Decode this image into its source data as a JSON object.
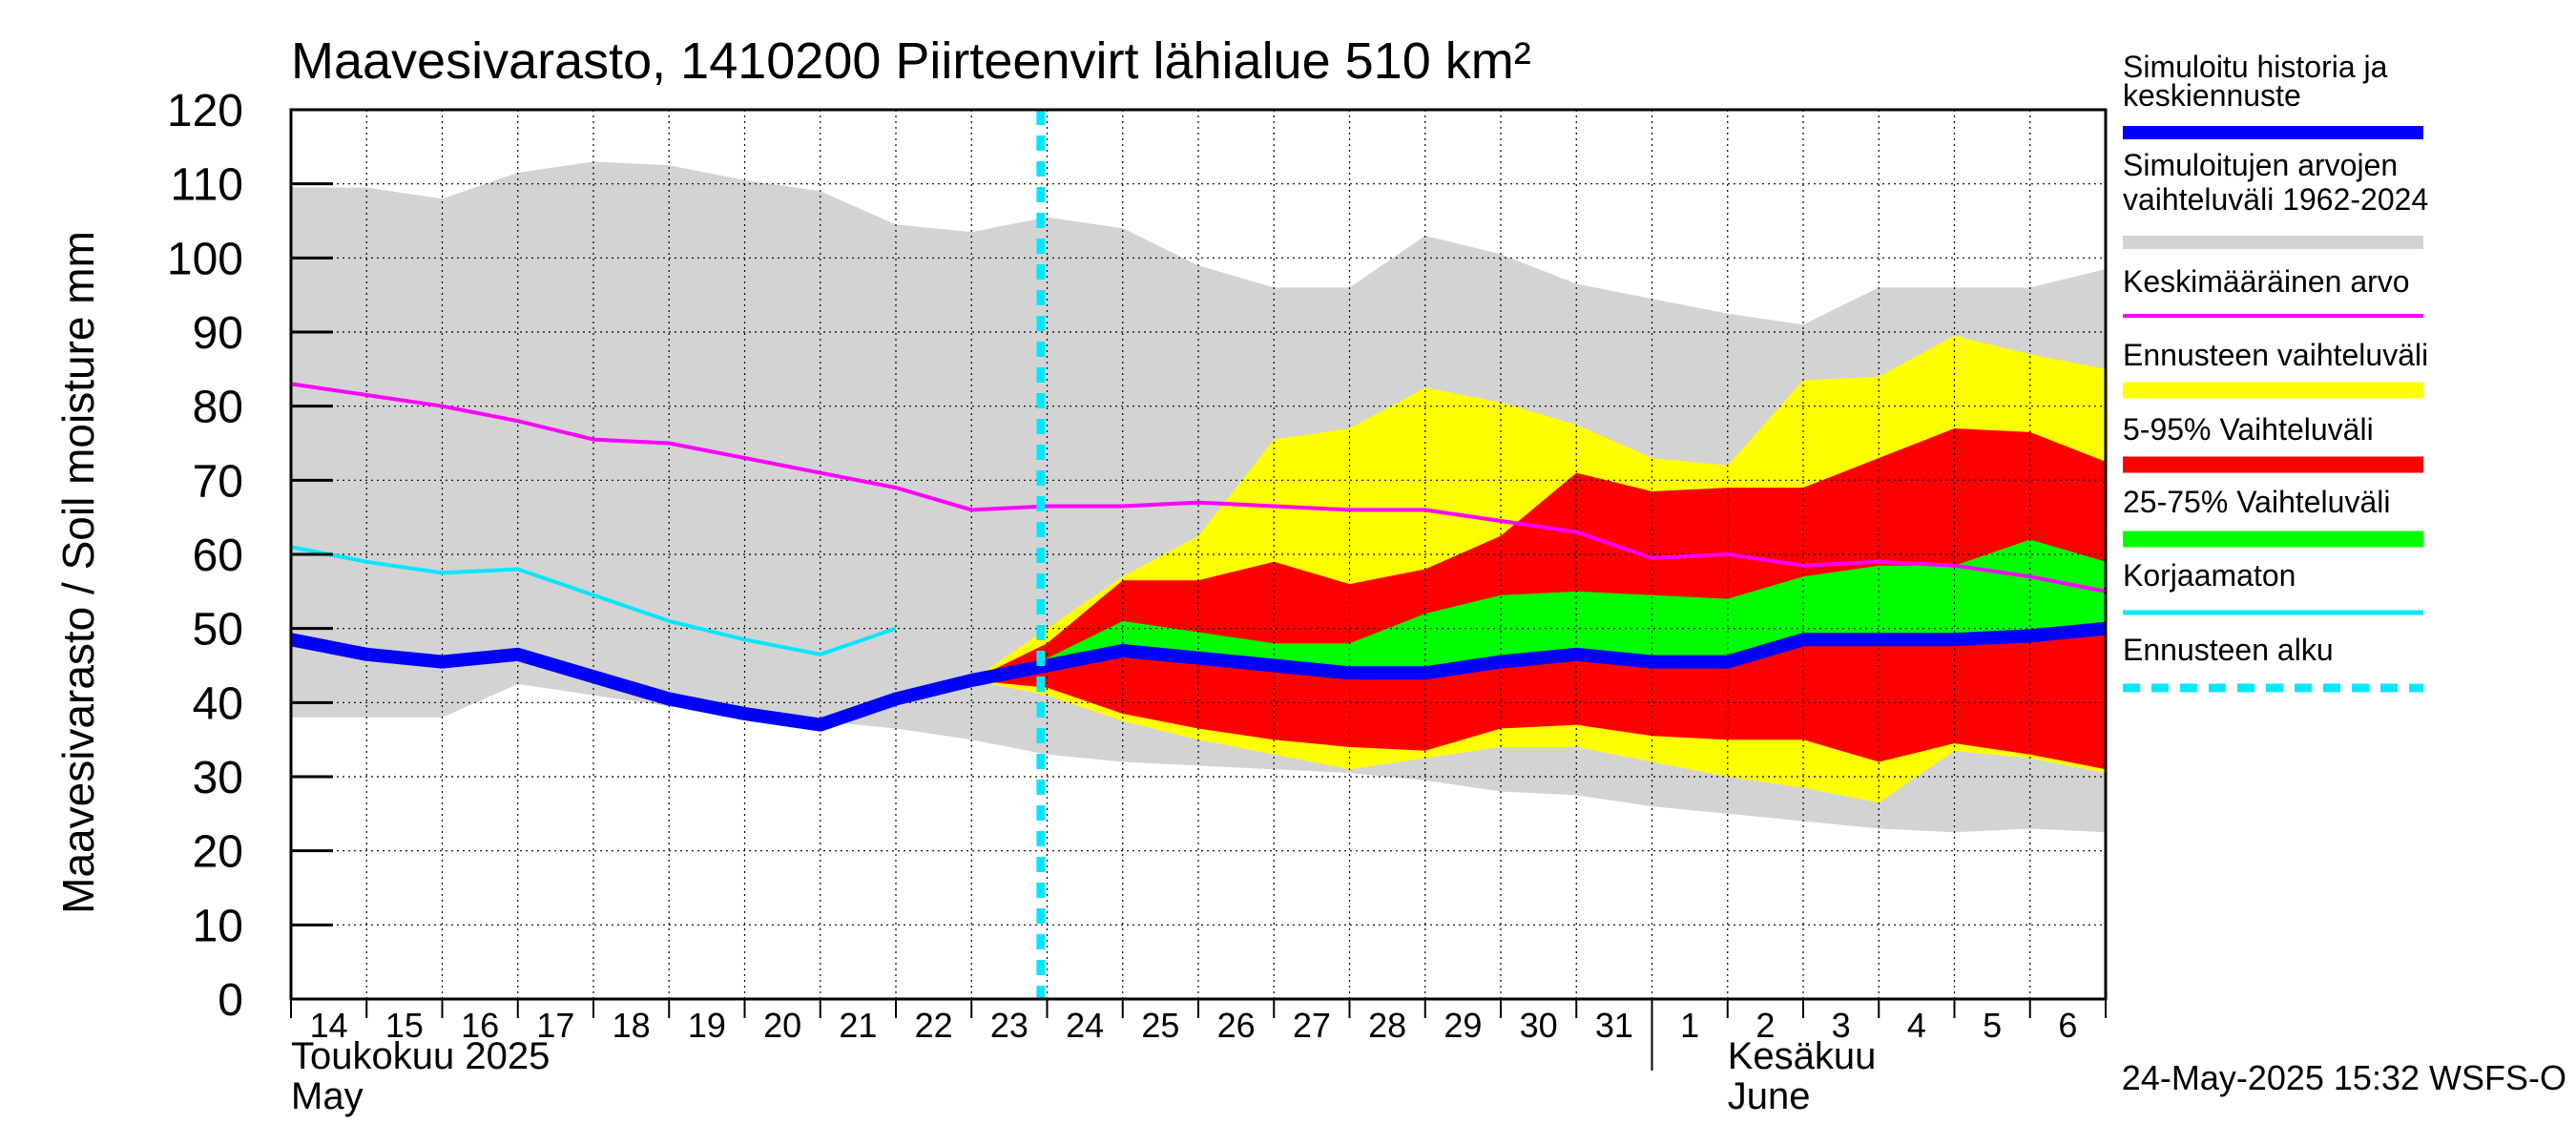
{
  "chart_data": {
    "type": "area",
    "title": "Maavesivarasto, 1410200 Piirteenvirt lähialue 510 km²",
    "ylabel": "Maavesivarasto / Soil moisture   mm",
    "ylim": [
      0,
      120
    ],
    "yticks": [
      0,
      10,
      20,
      30,
      40,
      50,
      60,
      70,
      80,
      90,
      100,
      110,
      120
    ],
    "xlim": [
      "2025-05-14",
      "2025-06-07"
    ],
    "x": [
      "2025-05-14",
      "2025-05-15",
      "2025-05-16",
      "2025-05-17",
      "2025-05-18",
      "2025-05-19",
      "2025-05-20",
      "2025-05-21",
      "2025-05-22",
      "2025-05-23",
      "2025-05-24",
      "2025-05-25",
      "2025-05-26",
      "2025-05-27",
      "2025-05-28",
      "2025-05-29",
      "2025-05-30",
      "2025-05-31",
      "2025-06-01",
      "2025-06-02",
      "2025-06-03",
      "2025-06-04",
      "2025-06-05",
      "2025-06-06",
      "2025-06-07"
    ],
    "day_labels": [
      "14",
      "15",
      "16",
      "17",
      "18",
      "19",
      "20",
      "21",
      "22",
      "23",
      "24",
      "25",
      "26",
      "27",
      "28",
      "29",
      "30",
      "31",
      "1",
      "2",
      "3",
      "4",
      "5",
      "6"
    ],
    "month_labels": [
      {
        "fi": "Toukokuu  2025",
        "en": "May",
        "start": "2025-05-14"
      },
      {
        "fi": "Kesäkuu",
        "en": "June",
        "start": "2025-06-02"
      }
    ],
    "forecast_start": "2025-05-23T22:00",
    "series": [
      {
        "name": "Simuloitujen arvojen vaihteluväli 1962-2024",
        "kind": "band",
        "color": "#d3d3d3",
        "upper": [
          109.5,
          109.5,
          108,
          111.5,
          113,
          112.5,
          110.5,
          109,
          104.5,
          103.5,
          105.5,
          104,
          99,
          96,
          96,
          103,
          100.5,
          96.5,
          94.5,
          92.5,
          91,
          96,
          96,
          96,
          98.5
        ],
        "lower": [
          38,
          38,
          38,
          42.5,
          41,
          39.5,
          38.5,
          37.5,
          36.5,
          35,
          33,
          32,
          31.5,
          31,
          30.5,
          29.5,
          28,
          27.5,
          26,
          25,
          24,
          23,
          22.5,
          23,
          22.5
        ]
      },
      {
        "name": "Ennusteen vaihteluväli",
        "kind": "band",
        "color": "#ffff00",
        "upper": [
          null,
          null,
          null,
          null,
          null,
          null,
          null,
          null,
          null,
          43,
          50,
          57,
          62.5,
          75.5,
          77,
          82.5,
          80.5,
          77.5,
          73,
          72,
          83.5,
          84,
          89.5,
          87,
          85
        ],
        "lower": [
          null,
          null,
          null,
          null,
          null,
          null,
          null,
          null,
          null,
          43,
          41,
          37.5,
          35,
          33,
          31,
          32.5,
          34,
          34,
          32,
          30,
          28.5,
          26.5,
          33.5,
          32.5,
          30.5
        ]
      },
      {
        "name": "5-95% Vaihteluväli",
        "kind": "band",
        "color": "#ff0000",
        "upper": [
          null,
          null,
          null,
          null,
          null,
          null,
          null,
          null,
          null,
          43,
          48,
          56.5,
          56.5,
          59,
          56,
          58,
          62.5,
          71,
          68.5,
          69,
          69,
          73,
          77,
          76.5,
          72.5
        ],
        "lower": [
          null,
          null,
          null,
          null,
          null,
          null,
          null,
          null,
          null,
          43,
          42,
          38.5,
          36.5,
          35,
          34,
          33.5,
          36.5,
          37,
          35.5,
          35,
          35,
          32,
          34.5,
          33,
          31
        ]
      },
      {
        "name": "25-75% Vaihteluväli",
        "kind": "band",
        "color": "#00ff00",
        "upper": [
          null,
          null,
          null,
          null,
          null,
          null,
          null,
          null,
          null,
          43,
          46,
          51,
          49.5,
          48,
          48,
          52,
          54.5,
          55,
          54.5,
          54,
          57,
          58.5,
          58.5,
          62,
          59
        ]
      },
      {
        "name": "Keskimääräinen arvo",
        "kind": "line",
        "color": "#ff00ff",
        "values": [
          83,
          81.5,
          80,
          78,
          75.5,
          75,
          73,
          71,
          69,
          66,
          66.5,
          66.5,
          67,
          66.5,
          66,
          66,
          64.5,
          63,
          59.5,
          60,
          58.5,
          59,
          58.5,
          57,
          55
        ]
      },
      {
        "name": "Korjaamaton",
        "kind": "line",
        "color": "#00e8ff",
        "values": [
          61,
          59,
          57.5,
          58,
          54.5,
          51,
          48.5,
          46.5,
          50,
          null,
          null,
          null,
          null,
          null,
          null,
          null,
          null,
          null,
          null,
          null,
          null,
          null,
          null,
          null,
          null
        ]
      },
      {
        "name": "Simuloitu historia ja keskiennuste",
        "kind": "line",
        "color": "#0000ff",
        "values": [
          48.5,
          46.5,
          45.5,
          46.5,
          43.5,
          40.5,
          38.5,
          37,
          40.5,
          43,
          45,
          47,
          46,
          45,
          44,
          44,
          45.5,
          46.5,
          45.5,
          45.5,
          48.5,
          48.5,
          48.5,
          49,
          50
        ]
      }
    ],
    "legend": {
      "placement": "right",
      "entries": [
        {
          "label": "Simuloitu historia ja keskiennuste",
          "lines": [
            "Simuloitu historia ja",
            "keskiennuste"
          ],
          "color": "#0000ff",
          "style": "thick"
        },
        {
          "label": "Simuloitujen arvojen vaihteluväli 1962-2024",
          "lines": [
            "Simuloitujen arvojen",
            "vaihteluväli 1962-2024"
          ],
          "color": "#d3d3d3",
          "style": "band"
        },
        {
          "label": "Keskimääräinen arvo",
          "lines": [
            "Keskimääräinen arvo"
          ],
          "color": "#ff00ff",
          "style": "line"
        },
        {
          "label": "Ennusteen vaihteluväli",
          "lines": [
            "Ennusteen vaihteluväli"
          ],
          "color": "#ffff00",
          "style": "band"
        },
        {
          "label": "5-95% Vaihteluväli",
          "lines": [
            "5-95% Vaihteluväli"
          ],
          "color": "#ff0000",
          "style": "band"
        },
        {
          "label": "25-75% Vaihteluväli",
          "lines": [
            "25-75% Vaihteluväli"
          ],
          "color": "#00ff00",
          "style": "band"
        },
        {
          "label": "Korjaamaton",
          "lines": [
            "Korjaamaton"
          ],
          "color": "#00e8ff",
          "style": "line"
        },
        {
          "label": "Ennusteen alku",
          "lines": [
            "Ennusteen alku"
          ],
          "color": "#00e8ff",
          "style": "dashed"
        }
      ]
    },
    "grid": true,
    "footer": "24-May-2025 15:32 WSFS-O"
  }
}
